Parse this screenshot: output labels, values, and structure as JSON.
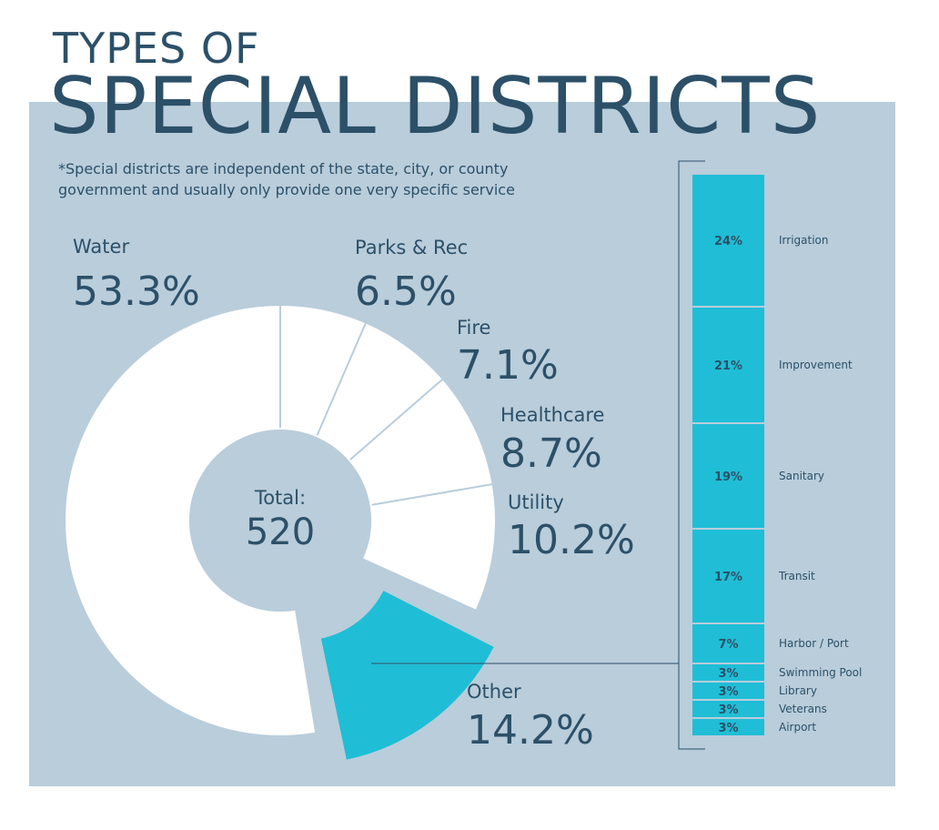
{
  "header": {
    "title_line1": "TYPES OF",
    "title_line2": "SPECIAL DISTRICTS",
    "subtitle": "*Special districts are independent of the state, city, or county government and usually only provide one very specific service"
  },
  "colors": {
    "panel": "#b9cddb",
    "text": "#2c5068",
    "highlight": "#1fbed6",
    "slice": "#ffffff",
    "divider": "#b9cddb"
  },
  "chart_data": [
    {
      "type": "pie",
      "center_label": "Total:",
      "center_value": "520",
      "slices": [
        {
          "name": "Water",
          "label": "53.3%",
          "value": 53.3
        },
        {
          "name": "Parks & Rec",
          "label": "6.5%",
          "value": 6.5
        },
        {
          "name": "Fire",
          "label": "7.1%",
          "value": 7.1
        },
        {
          "name": "Healthcare",
          "label": "8.7%",
          "value": 8.7
        },
        {
          "name": "Utility",
          "label": "10.2%",
          "value": 10.2
        },
        {
          "name": "Other",
          "label": "14.2%",
          "value": 14.2,
          "highlighted": true
        }
      ]
    },
    {
      "type": "bar",
      "stacked": true,
      "categories": [
        "Irrigation",
        "Improvement",
        "Sanitary",
        "Transit",
        "Harbor / Port",
        "Swimming Pool",
        "Library",
        "Veterans",
        "Airport"
      ],
      "values": [
        24,
        21,
        19,
        17,
        7,
        3,
        3,
        3,
        3
      ],
      "labels": [
        "24%",
        "21%",
        "19%",
        "17%",
        "7%",
        "3%",
        "3%",
        "3%",
        "3%"
      ]
    }
  ]
}
